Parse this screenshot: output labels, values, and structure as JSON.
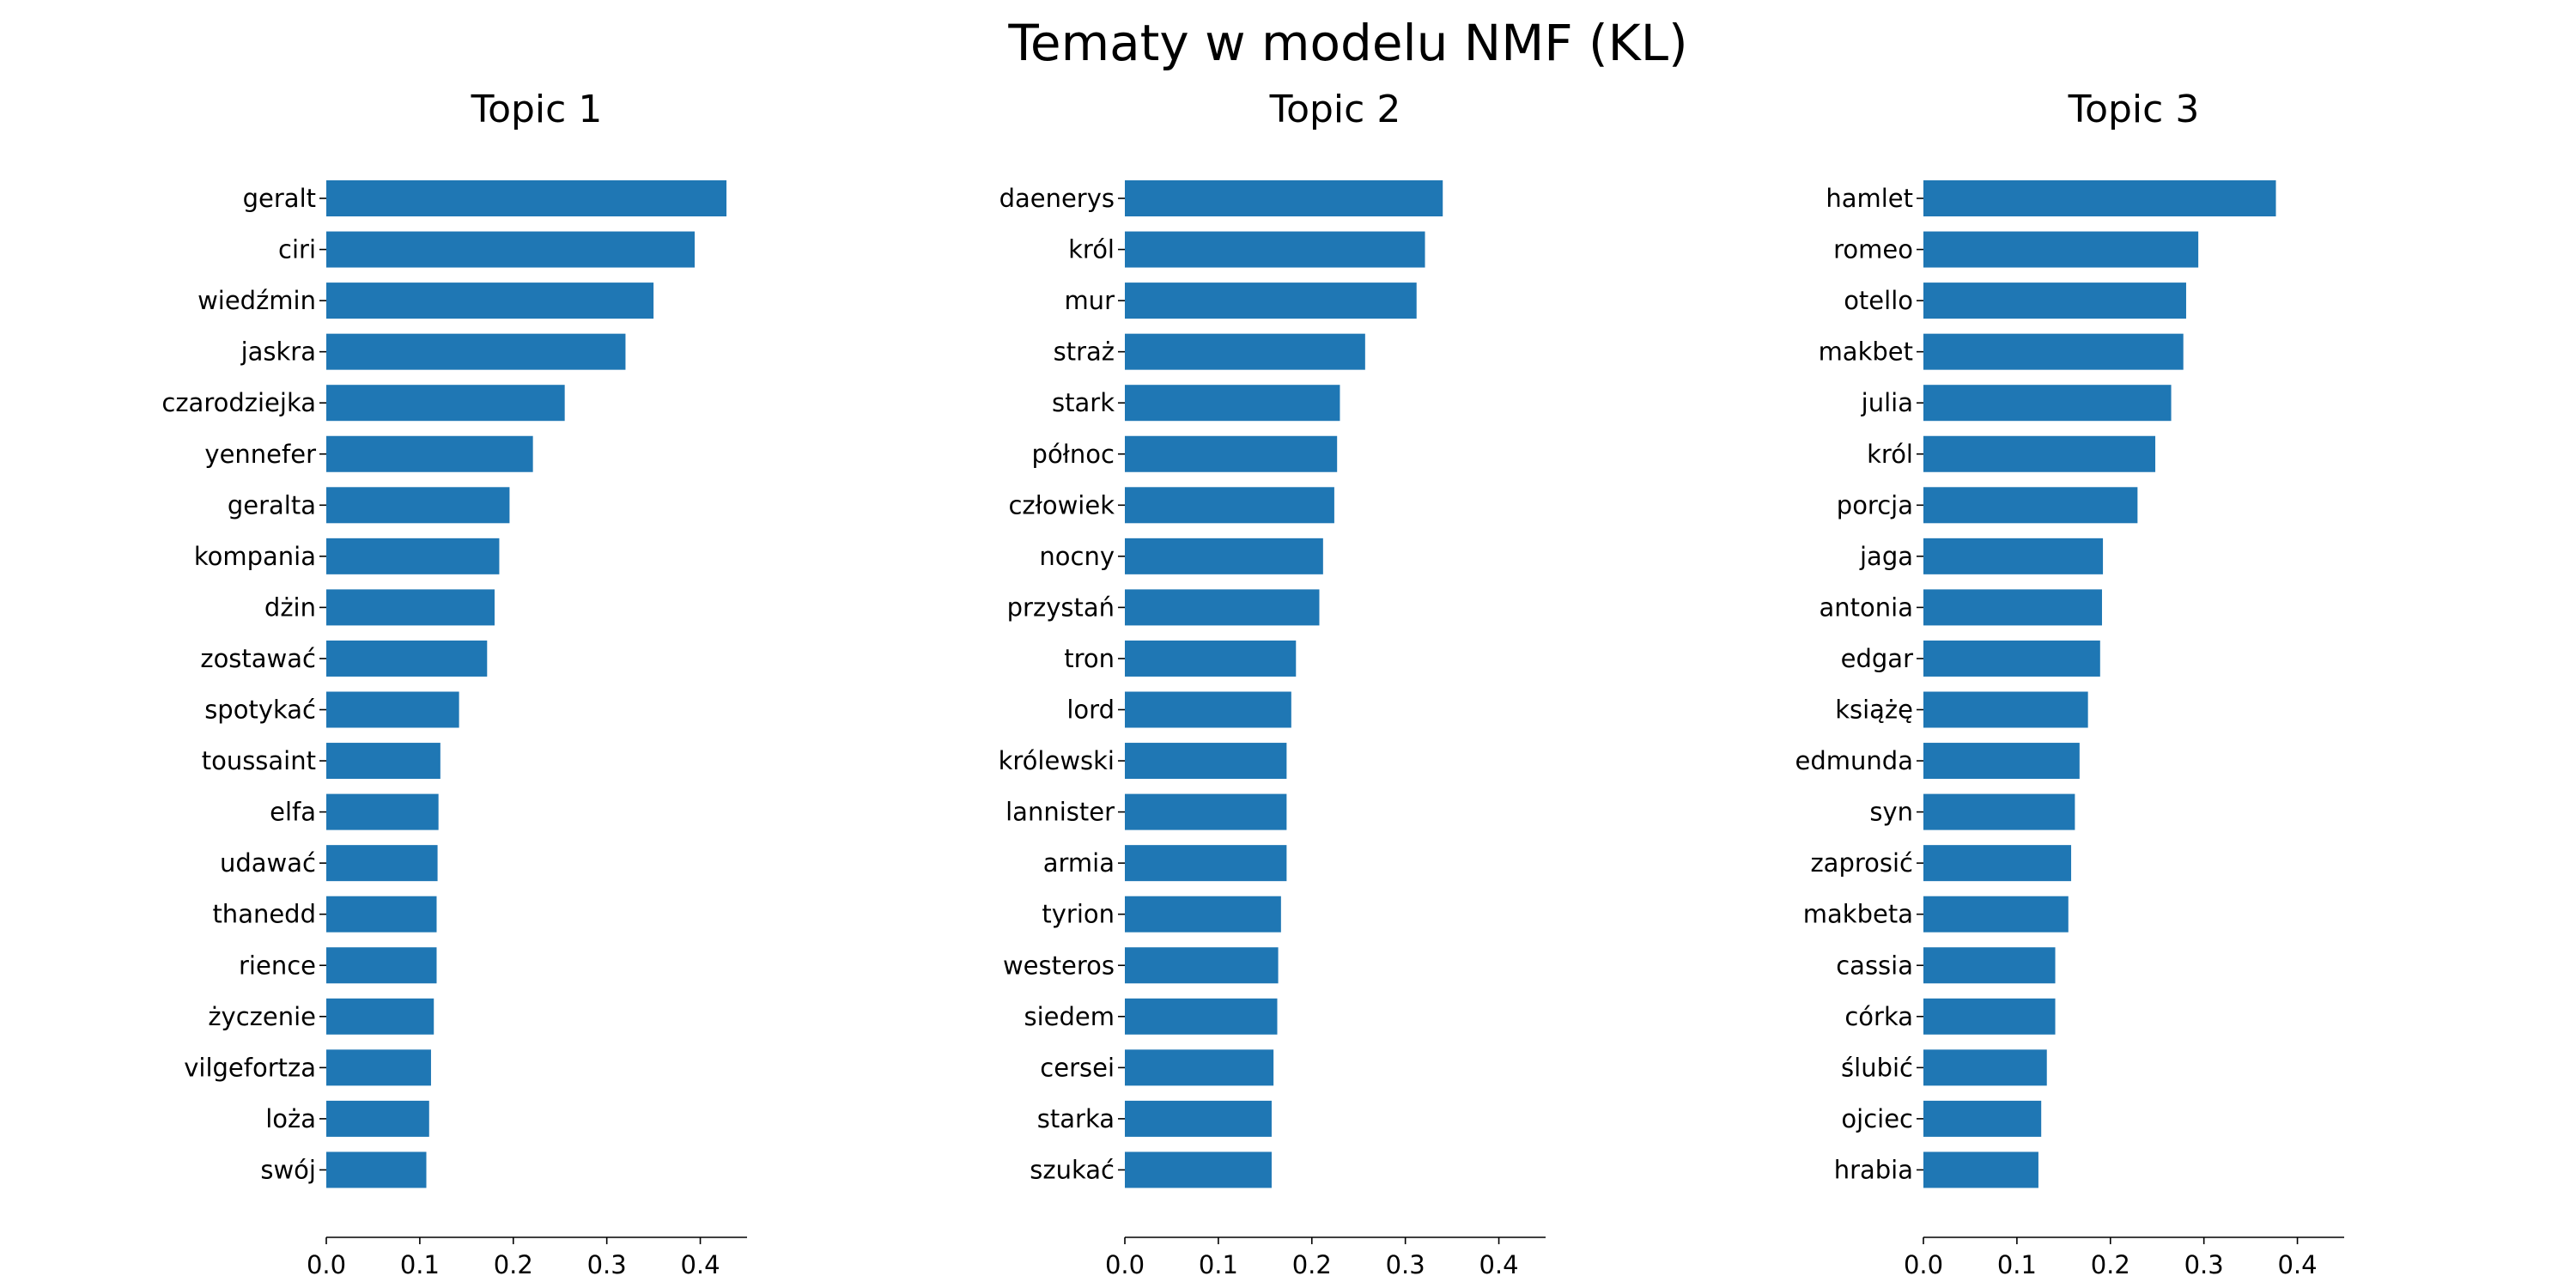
{
  "figure_title": "Tematy w modelu NMF (KL)",
  "colors": {
    "bar": "#1f77b4"
  },
  "chart_data": [
    {
      "type": "bar",
      "orientation": "horizontal",
      "title": "Topic 1",
      "xlim": [
        0,
        0.45
      ],
      "xticks": [
        0.0,
        0.1,
        0.2,
        0.3,
        0.4
      ],
      "xtick_labels": [
        "0.0",
        "0.1",
        "0.2",
        "0.3",
        "0.4"
      ],
      "categories": [
        "geralt",
        "ciri",
        "wiedźmin",
        "jaskra",
        "czarodziejka",
        "yennefer",
        "geralta",
        "kompania",
        "dżin",
        "zostawać",
        "spotykać",
        "toussaint",
        "elfa",
        "udawać",
        "thanedd",
        "rience",
        "życzenie",
        "vilgefortza",
        "loża",
        "swój"
      ],
      "values": [
        0.428,
        0.394,
        0.35,
        0.32,
        0.255,
        0.221,
        0.196,
        0.185,
        0.18,
        0.172,
        0.142,
        0.122,
        0.12,
        0.119,
        0.118,
        0.118,
        0.115,
        0.112,
        0.11,
        0.107
      ]
    },
    {
      "type": "bar",
      "orientation": "horizontal",
      "title": "Topic 2",
      "xlim": [
        0,
        0.45
      ],
      "xticks": [
        0.0,
        0.1,
        0.2,
        0.3,
        0.4
      ],
      "xtick_labels": [
        "0.0",
        "0.1",
        "0.2",
        "0.3",
        "0.4"
      ],
      "categories": [
        "daenerys",
        "król",
        "mur",
        "straż",
        "stark",
        "północ",
        "człowiek",
        "nocny",
        "przystań",
        "tron",
        "lord",
        "królewski",
        "lannister",
        "armia",
        "tyrion",
        "westeros",
        "siedem",
        "cersei",
        "starka",
        "szukać"
      ],
      "values": [
        0.34,
        0.321,
        0.312,
        0.257,
        0.23,
        0.227,
        0.224,
        0.212,
        0.208,
        0.183,
        0.178,
        0.173,
        0.173,
        0.173,
        0.167,
        0.164,
        0.163,
        0.159,
        0.157,
        0.157
      ]
    },
    {
      "type": "bar",
      "orientation": "horizontal",
      "title": "Topic 3",
      "xlim": [
        0,
        0.45
      ],
      "xticks": [
        0.0,
        0.1,
        0.2,
        0.3,
        0.4
      ],
      "xtick_labels": [
        "0.0",
        "0.1",
        "0.2",
        "0.3",
        "0.4"
      ],
      "categories": [
        "hamlet",
        "romeo",
        "otello",
        "makbet",
        "julia",
        "król",
        "porcja",
        "jaga",
        "antonia",
        "edgar",
        "książę",
        "edmunda",
        "syn",
        "zaprosić",
        "makbeta",
        "cassia",
        "córka",
        "ślubić",
        "ojciec",
        "hrabia"
      ],
      "values": [
        0.377,
        0.294,
        0.281,
        0.278,
        0.265,
        0.248,
        0.229,
        0.192,
        0.191,
        0.189,
        0.176,
        0.167,
        0.162,
        0.158,
        0.155,
        0.141,
        0.141,
        0.132,
        0.126,
        0.123
      ]
    }
  ]
}
